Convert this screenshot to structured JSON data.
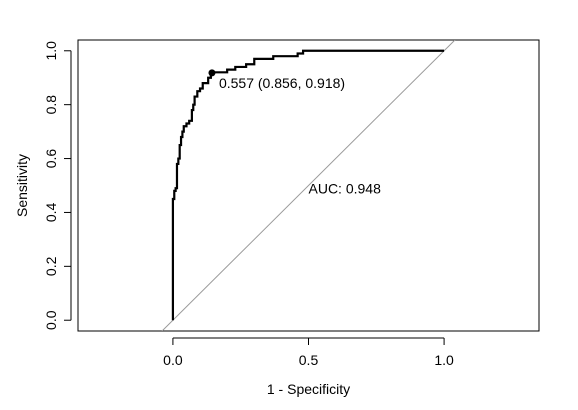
{
  "chart_data": {
    "type": "line",
    "title": "",
    "xlabel": "1 - Specificity",
    "ylabel": "Sensitivity",
    "xlim": [
      -0.35,
      1.35
    ],
    "ylim": [
      -0.04,
      1.04
    ],
    "x_ticks": [
      0.0,
      0.5,
      1.0
    ],
    "x_tick_labels": [
      "0.0",
      "0.5",
      "1.0"
    ],
    "y_ticks": [
      0.0,
      0.2,
      0.4,
      0.6,
      0.8,
      1.0
    ],
    "y_tick_labels": [
      "0.0",
      "0.2",
      "0.4",
      "0.6",
      "0.8",
      "1.0"
    ],
    "grid": false,
    "legend": "none",
    "colors": {
      "roc": "#000000",
      "diagonal": "#9a9a9a"
    },
    "series": [
      {
        "values": [
          [
            0.0,
            0.0
          ],
          [
            0.0,
            0.43
          ],
          [
            0.005,
            0.45
          ],
          [
            0.01,
            0.48
          ],
          [
            0.015,
            0.49
          ],
          [
            0.02,
            0.58
          ],
          [
            0.025,
            0.6
          ],
          [
            0.03,
            0.65
          ],
          [
            0.035,
            0.68
          ],
          [
            0.04,
            0.7
          ],
          [
            0.05,
            0.72
          ],
          [
            0.06,
            0.73
          ],
          [
            0.07,
            0.74
          ],
          [
            0.075,
            0.78
          ],
          [
            0.08,
            0.8
          ],
          [
            0.09,
            0.83
          ],
          [
            0.1,
            0.85
          ],
          [
            0.11,
            0.86
          ],
          [
            0.115,
            0.88
          ],
          [
            0.13,
            0.88
          ],
          [
            0.14,
            0.9
          ],
          [
            0.144,
            0.918
          ],
          [
            0.2,
            0.92
          ],
          [
            0.23,
            0.93
          ],
          [
            0.27,
            0.94
          ],
          [
            0.3,
            0.95
          ],
          [
            0.33,
            0.97
          ],
          [
            0.37,
            0.97
          ],
          [
            0.46,
            0.98
          ],
          [
            0.48,
            0.99
          ],
          [
            0.5,
            1.0
          ],
          [
            1.0,
            1.0
          ]
        ]
      }
    ],
    "reference_line": {
      "from": [
        -0.04,
        -0.04
      ],
      "to": [
        1.04,
        1.04
      ]
    },
    "threshold_point": {
      "x": 0.144,
      "y": 0.918,
      "label": "0.557 (0.856, 0.918)"
    },
    "auc_label": "AUC: 0.948",
    "auc_label_position": [
      0.5,
      0.47
    ]
  }
}
